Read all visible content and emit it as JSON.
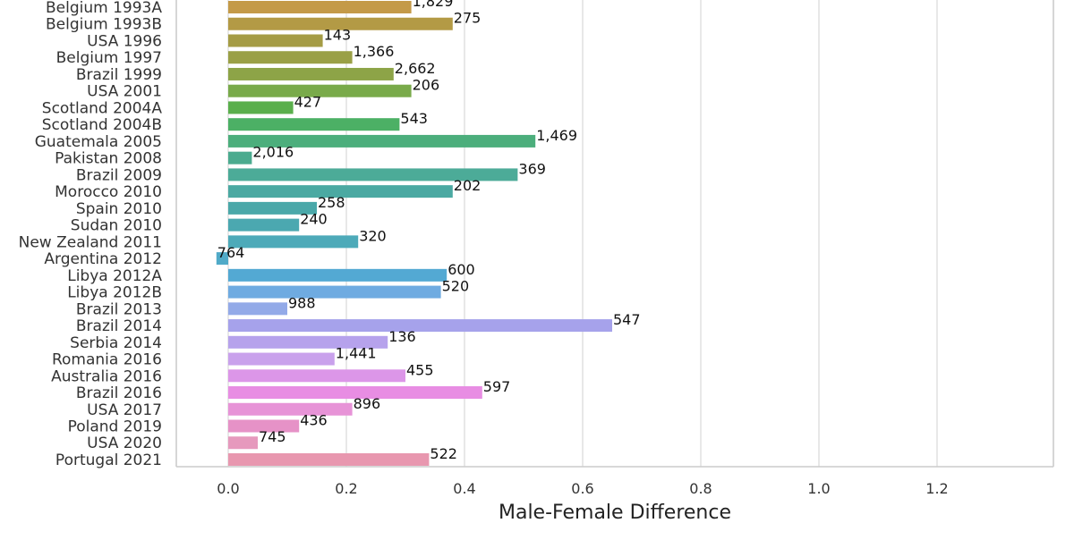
{
  "chart_data": {
    "type": "bar",
    "orientation": "horizontal",
    "xlabel": "Male-Female Difference",
    "ylabel": "",
    "xlim": [
      -0.09,
      1.4
    ],
    "x_ticks": [
      0.0,
      0.2,
      0.4,
      0.6,
      0.8,
      1.0,
      1.2
    ],
    "x_tick_labels": [
      "0.0",
      "0.2",
      "0.4",
      "0.6",
      "0.8",
      "1.0",
      "1.2"
    ],
    "grid": true,
    "categories": [
      "Belgium 1993A",
      "Belgium 1993B",
      "USA 1996",
      "Belgium 1997",
      "Brazil 1999",
      "USA 2001",
      "Scotland 2004A",
      "Scotland 2004B",
      "Guatemala 2005",
      "Pakistan 2008",
      "Brazil 2009",
      "Morocco 2010",
      "Spain 2010",
      "Sudan 2010",
      "New Zealand 2011",
      "Argentina 2012",
      "Libya 2012A",
      "Libya 2012B",
      "Brazil 2013",
      "Brazil 2014",
      "Serbia 2014",
      "Romania 2016",
      "Australia 2016",
      "Brazil 2016",
      "USA 2017",
      "Poland 2019",
      "USA 2020",
      "Portugal 2021"
    ],
    "values": [
      0.31,
      0.38,
      0.16,
      0.21,
      0.28,
      0.31,
      0.11,
      0.29,
      0.52,
      0.04,
      0.49,
      0.38,
      0.15,
      0.12,
      0.22,
      -0.02,
      0.37,
      0.36,
      0.1,
      0.65,
      0.27,
      0.18,
      0.3,
      0.43,
      0.21,
      0.12,
      0.05,
      0.34
    ],
    "data_labels": [
      "1,829",
      "275",
      "143",
      "1,366",
      "2,662",
      "206",
      "427",
      "543",
      "1,469",
      "2,016",
      "369",
      "202",
      "258",
      "240",
      "320",
      "764",
      "600",
      "520",
      "988",
      "547",
      "136",
      "1,441",
      "455",
      "597",
      "896",
      "436",
      "745",
      "522"
    ],
    "colors": [
      "#c49a48",
      "#b39a45",
      "#a59c45",
      "#9aa046",
      "#8da447",
      "#79aa4a",
      "#5aaf4c",
      "#4cb065",
      "#4cae7c",
      "#4bab8f",
      "#4cab98",
      "#4ba9a2",
      "#4aa8a9",
      "#4ba8b0",
      "#4daab9",
      "#50aac8",
      "#53a9d3",
      "#6fabe1",
      "#93aae8",
      "#a6a2eb",
      "#b6a2ec",
      "#c9a1ec",
      "#dc96e8",
      "#e88de3",
      "#e793d7",
      "#e692c7",
      "#e699bd",
      "#e897af"
    ]
  }
}
